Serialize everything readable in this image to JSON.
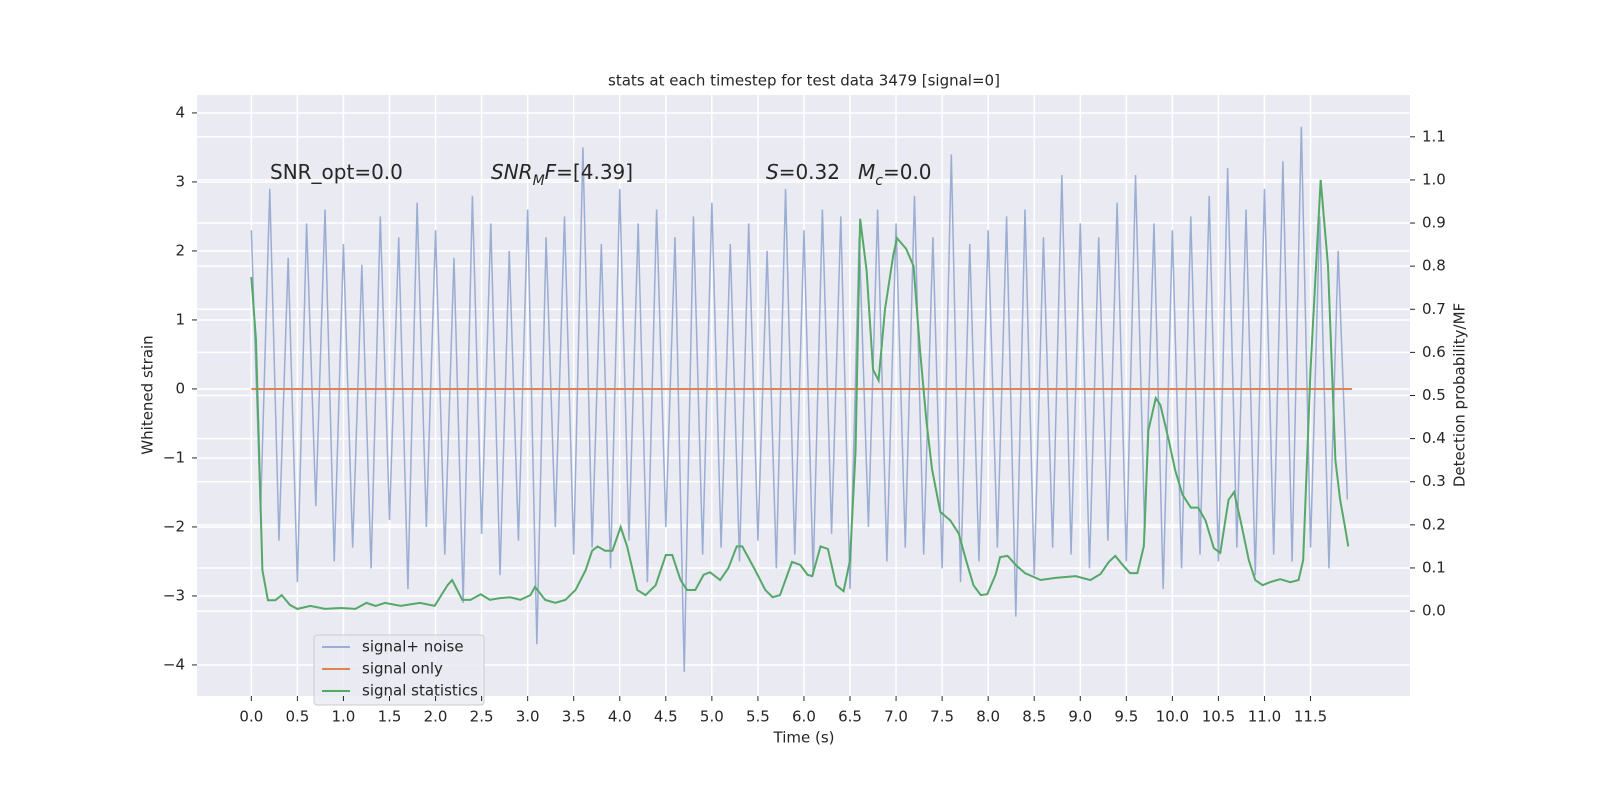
{
  "chart_data": {
    "type": "line",
    "title": "stats at each timestep for test data 3479 [signal=0]",
    "xlabel": "Time (s)",
    "ylabel": "Whitened strain",
    "y2label": "Detection probability/MF",
    "xlim": [
      -0.59,
      12.58
    ],
    "ylim": [
      -4.45,
      4.26
    ],
    "y2lim": [
      -0.197,
      1.197
    ],
    "grid": true,
    "legend": "lower left",
    "xticks": [
      {
        "value": 0,
        "label": "0.0"
      },
      {
        "value": 0.5,
        "label": "0.5"
      },
      {
        "value": 1,
        "label": "1.0"
      },
      {
        "value": 1.5,
        "label": "1.5"
      },
      {
        "value": 2,
        "label": "2.0"
      },
      {
        "value": 2.5,
        "label": "2.5"
      },
      {
        "value": 3,
        "label": "3.0"
      },
      {
        "value": 3.5,
        "label": "3.5"
      },
      {
        "value": 4,
        "label": "4.0"
      },
      {
        "value": 4.5,
        "label": "4.5"
      },
      {
        "value": 5,
        "label": "5.0"
      },
      {
        "value": 5.5,
        "label": "5.5"
      },
      {
        "value": 6,
        "label": "6.0"
      },
      {
        "value": 6.5,
        "label": "6.5"
      },
      {
        "value": 7,
        "label": "7.0"
      },
      {
        "value": 7.5,
        "label": "7.5"
      },
      {
        "value": 8,
        "label": "8.0"
      },
      {
        "value": 8.5,
        "label": "8.5"
      },
      {
        "value": 9,
        "label": "9.0"
      },
      {
        "value": 9.5,
        "label": "9.5"
      },
      {
        "value": 10,
        "label": "10.0"
      },
      {
        "value": 10.5,
        "label": "10.5"
      },
      {
        "value": 11,
        "label": "11.0"
      },
      {
        "value": 11.5,
        "label": "11.5"
      }
    ],
    "yticks": [
      {
        "value": -4,
        "label": "−4"
      },
      {
        "value": -3,
        "label": "−3"
      },
      {
        "value": -2,
        "label": "−2"
      },
      {
        "value": -1,
        "label": "−1"
      },
      0,
      1,
      2,
      3,
      4
    ],
    "y2ticks": [
      {
        "value": 0,
        "label": "0.0"
      },
      {
        "value": 0.1,
        "label": "0.1"
      },
      {
        "value": 0.2,
        "label": "0.2"
      },
      {
        "value": 0.3,
        "label": "0.3"
      },
      {
        "value": 0.4,
        "label": "0.4"
      },
      {
        "value": 0.5,
        "label": "0.5"
      },
      {
        "value": 0.6,
        "label": "0.6"
      },
      {
        "value": 0.7,
        "label": "0.7"
      },
      {
        "value": 0.8,
        "label": "0.8"
      },
      {
        "value": 0.9,
        "label": "0.9"
      },
      {
        "value": 1,
        "label": "1.0"
      },
      {
        "value": 1.1,
        "label": "1.1"
      }
    ],
    "annotations": [
      {
        "parts": [
          {
            "text": "SNR_opt=0.0"
          }
        ]
      },
      {
        "parts": [
          {
            "text": "SNR",
            "italic": true
          },
          {
            "text": "M",
            "italic": true,
            "sub": true
          },
          {
            "text": "F",
            "italic": true
          },
          {
            "text": "=[4.39]"
          }
        ]
      },
      {
        "parts": [
          {
            "text": "S",
            "italic": true
          },
          {
            "text": "=0.32"
          }
        ]
      },
      {
        "parts": [
          {
            "text": "M",
            "italic": true
          },
          {
            "text": "c",
            "italic": true,
            "sub": true
          },
          {
            "text": "=0.0"
          }
        ]
      }
    ],
    "series": [
      {
        "name": "signal+ noise",
        "color": "#9badd2",
        "x": [
          0,
          0.1,
          0.2,
          0.3,
          0.4,
          0.5,
          0.6,
          0.7,
          0.8,
          0.9,
          1,
          1.1,
          1.2,
          1.3,
          1.4,
          1.5,
          1.6,
          1.7,
          1.8,
          1.9,
          2,
          2.1,
          2.2,
          2.3,
          2.4,
          2.5,
          2.6,
          2.7,
          2.8,
          2.9,
          3,
          3.1,
          3.2,
          3.3,
          3.4,
          3.5,
          3.6,
          3.7,
          3.8,
          3.9,
          4,
          4.1,
          4.2,
          4.3,
          4.4,
          4.5,
          4.6,
          4.7,
          4.8,
          4.9,
          5,
          5.1,
          5.2,
          5.3,
          5.4,
          5.5,
          5.6,
          5.7,
          5.8,
          5.9,
          6,
          6.1,
          6.2,
          6.3,
          6.4,
          6.5,
          6.6,
          6.7,
          6.8,
          6.9,
          7,
          7.1,
          7.2,
          7.3,
          7.4,
          7.5,
          7.6,
          7.7,
          7.8,
          7.9,
          8,
          8.1,
          8.2,
          8.3,
          8.4,
          8.5,
          8.6,
          8.7,
          8.8,
          8.9,
          9,
          9.1,
          9.2,
          9.3,
          9.4,
          9.5,
          9.6,
          9.7,
          9.8,
          9.9,
          10,
          10.1,
          10.2,
          10.3,
          10.4,
          10.5,
          10.6,
          10.7,
          10.8,
          10.9,
          11,
          11.1,
          11.2,
          11.3,
          11.4,
          11.5,
          11.6,
          11.7,
          11.8,
          11.9
        ],
        "values": [
          2.3,
          -1.8,
          2.9,
          -2.2,
          1.9,
          -2.8,
          2.4,
          -1.7,
          2.6,
          -2.5,
          2.1,
          -2.3,
          1.8,
          -2.6,
          2.5,
          -1.9,
          2.2,
          -2.9,
          2.7,
          -2.0,
          2.3,
          -2.4,
          1.9,
          -3.1,
          2.8,
          -2.1,
          2.4,
          -2.7,
          2.0,
          -2.2,
          2.6,
          -3.7,
          2.2,
          -2.0,
          2.5,
          -2.4,
          3.5,
          -2.3,
          2.1,
          -2.6,
          2.9,
          -2.2,
          2.4,
          -2.8,
          2.6,
          -2.0,
          2.2,
          -4.1,
          2.5,
          -2.4,
          2.7,
          -2.3,
          2.1,
          -2.5,
          2.4,
          -2.2,
          2.0,
          -2.6,
          2.9,
          -2.4,
          2.3,
          -2.7,
          2.6,
          -2.1,
          2.5,
          -2.9,
          2.2,
          -2.0,
          2.6,
          -2.5,
          2.4,
          -2.3,
          2.8,
          -2.4,
          2.2,
          -2.6,
          3.4,
          -2.8,
          2.1,
          -2.5,
          2.3,
          -2.3,
          2.5,
          -3.3,
          2.6,
          -2.7,
          2.2,
          -2.3,
          3.1,
          -2.4,
          2.4,
          -2.6,
          2.2,
          -2.2,
          2.7,
          -2.5,
          3.1,
          -2.1,
          2.4,
          -2.9,
          2.3,
          -2.6,
          2.5,
          -2.4,
          2.8,
          -2.5,
          3.2,
          -2.3,
          2.6,
          -2.7,
          2.9,
          -2.4,
          3.3,
          -2.5,
          3.8,
          -2.3,
          2.5,
          -2.6,
          2.0,
          -1.6
        ]
      },
      {
        "name": "signal only",
        "color": "#dd8452",
        "x": [
          0,
          11.95
        ],
        "values": [
          0,
          0
        ]
      },
      {
        "name": "signal statistics",
        "color": "#55a868",
        "axis": "y2",
        "x": [
          0,
          0.05,
          0.12,
          0.18,
          0.26,
          0.33,
          0.42,
          0.5,
          0.64,
          0.8,
          0.97,
          1.13,
          1.25,
          1.35,
          1.45,
          1.62,
          1.83,
          1.99,
          2.13,
          2.18,
          2.29,
          2.38,
          2.49,
          2.59,
          2.7,
          2.81,
          2.92,
          3.03,
          3.08,
          3.19,
          3.3,
          3.41,
          3.52,
          3.63,
          3.7,
          3.76,
          3.84,
          3.92,
          4.01,
          4.08,
          4.19,
          4.28,
          4.39,
          4.5,
          4.57,
          4.66,
          4.73,
          4.82,
          4.91,
          4.98,
          5.09,
          5.18,
          5.27,
          5.33,
          5.47,
          5.58,
          5.66,
          5.74,
          5.87,
          5.96,
          6.04,
          6.09,
          6.18,
          6.26,
          6.35,
          6.43,
          6.5,
          6.56,
          6.61,
          6.68,
          6.75,
          6.81,
          6.88,
          6.97,
          7.01,
          7.11,
          7.19,
          7.26,
          7.33,
          7.39,
          7.48,
          7.59,
          7.68,
          7.76,
          7.84,
          7.92,
          7.99,
          8.08,
          8.13,
          8.21,
          8.3,
          8.4,
          8.57,
          8.73,
          8.95,
          9.11,
          9.22,
          9.31,
          9.38,
          9.46,
          9.54,
          9.62,
          9.69,
          9.74,
          9.82,
          9.87,
          9.96,
          10.03,
          10.11,
          10.2,
          10.28,
          10.36,
          10.45,
          10.52,
          10.61,
          10.67,
          10.74,
          10.83,
          10.9,
          10.98,
          11.06,
          11.17,
          11.28,
          11.37,
          11.42,
          11.5,
          11.61,
          11.69,
          11.77,
          11.82,
          11.87,
          11.91
        ],
        "values": [
          0.775,
          0.63,
          0.095,
          0.025,
          0.025,
          0.037,
          0.014,
          0.005,
          0.012,
          0.005,
          0.007,
          0.005,
          0.019,
          0.012,
          0.019,
          0.012,
          0.019,
          0.012,
          0.06,
          0.072,
          0.026,
          0.026,
          0.039,
          0.026,
          0.03,
          0.032,
          0.026,
          0.037,
          0.056,
          0.026,
          0.019,
          0.026,
          0.049,
          0.095,
          0.14,
          0.15,
          0.14,
          0.14,
          0.195,
          0.15,
          0.049,
          0.037,
          0.06,
          0.13,
          0.13,
          0.072,
          0.049,
          0.049,
          0.084,
          0.09,
          0.072,
          0.1,
          0.15,
          0.15,
          0.095,
          0.049,
          0.032,
          0.037,
          0.114,
          0.107,
          0.084,
          0.081,
          0.15,
          0.144,
          0.06,
          0.046,
          0.118,
          0.37,
          0.91,
          0.79,
          0.56,
          0.535,
          0.7,
          0.826,
          0.865,
          0.84,
          0.8,
          0.605,
          0.44,
          0.33,
          0.23,
          0.21,
          0.18,
          0.118,
          0.06,
          0.037,
          0.039,
          0.084,
          0.125,
          0.128,
          0.107,
          0.088,
          0.072,
          0.077,
          0.081,
          0.072,
          0.086,
          0.114,
          0.128,
          0.107,
          0.088,
          0.088,
          0.15,
          0.42,
          0.494,
          0.478,
          0.397,
          0.327,
          0.27,
          0.24,
          0.24,
          0.21,
          0.146,
          0.135,
          0.258,
          0.276,
          0.21,
          0.118,
          0.072,
          0.06,
          0.067,
          0.074,
          0.067,
          0.072,
          0.118,
          0.56,
          1.0,
          0.8,
          0.35,
          0.26,
          0.2,
          0.15
        ]
      }
    ]
  }
}
